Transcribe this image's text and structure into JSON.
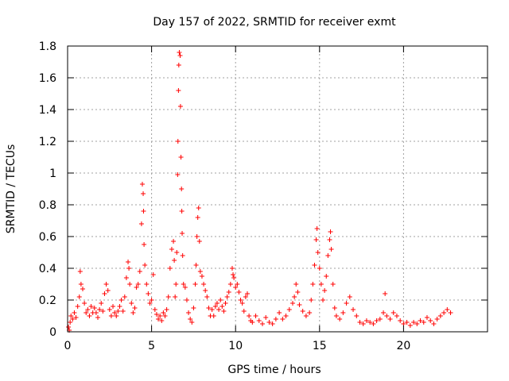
{
  "chart_data": {
    "type": "scatter",
    "title": "Day 157 of 2022, SRMTID for receiver exmt",
    "xlabel": "GPS time / hours",
    "ylabel": "SRMTID / TECUs",
    "xlim": [
      0,
      25
    ],
    "ylim": [
      0,
      1.8
    ],
    "xticks": [
      0,
      5,
      10,
      15,
      20
    ],
    "xtick_labels": [
      "0",
      "5",
      "10",
      "15",
      "20"
    ],
    "yticks": [
      0,
      0.2,
      0.4,
      0.6,
      0.8,
      1,
      1.2,
      1.4,
      1.6,
      1.8
    ],
    "ytick_labels": [
      "0",
      "0.2",
      "0.4",
      "0.6",
      "0.8",
      "1",
      "1.2",
      "1.4",
      "1.6",
      "1.8"
    ],
    "grid": true,
    "marker": "+",
    "marker_color": "#ff0000",
    "series": [
      {
        "name": "SRMTID",
        "points": [
          [
            0.05,
            0.03
          ],
          [
            0.1,
            0.01
          ],
          [
            0.15,
            0.06
          ],
          [
            0.2,
            0.1
          ],
          [
            0.3,
            0.08
          ],
          [
            0.4,
            0.12
          ],
          [
            0.5,
            0.09
          ],
          [
            0.6,
            0.16
          ],
          [
            0.7,
            0.22
          ],
          [
            0.75,
            0.38
          ],
          [
            0.8,
            0.3
          ],
          [
            0.9,
            0.27
          ],
          [
            1.0,
            0.18
          ],
          [
            1.1,
            0.12
          ],
          [
            1.2,
            0.14
          ],
          [
            1.3,
            0.1
          ],
          [
            1.4,
            0.16
          ],
          [
            1.5,
            0.12
          ],
          [
            1.6,
            0.15
          ],
          [
            1.7,
            0.12
          ],
          [
            1.8,
            0.09
          ],
          [
            1.9,
            0.14
          ],
          [
            2.0,
            0.18
          ],
          [
            2.1,
            0.13
          ],
          [
            2.2,
            0.24
          ],
          [
            2.3,
            0.3
          ],
          [
            2.4,
            0.26
          ],
          [
            2.5,
            0.14
          ],
          [
            2.6,
            0.1
          ],
          [
            2.7,
            0.16
          ],
          [
            2.8,
            0.12
          ],
          [
            2.9,
            0.1
          ],
          [
            3.0,
            0.13
          ],
          [
            3.1,
            0.16
          ],
          [
            3.2,
            0.2
          ],
          [
            3.3,
            0.13
          ],
          [
            3.4,
            0.22
          ],
          [
            3.5,
            0.34
          ],
          [
            3.6,
            0.44
          ],
          [
            3.65,
            0.4
          ],
          [
            3.7,
            0.3
          ],
          [
            3.8,
            0.18
          ],
          [
            3.9,
            0.12
          ],
          [
            4.0,
            0.15
          ],
          [
            4.1,
            0.28
          ],
          [
            4.2,
            0.3
          ],
          [
            4.3,
            0.38
          ],
          [
            4.4,
            0.68
          ],
          [
            4.45,
            0.93
          ],
          [
            4.5,
            0.87
          ],
          [
            4.52,
            0.76
          ],
          [
            4.55,
            0.55
          ],
          [
            4.6,
            0.42
          ],
          [
            4.7,
            0.3
          ],
          [
            4.8,
            0.24
          ],
          [
            4.9,
            0.18
          ],
          [
            5.0,
            0.2
          ],
          [
            5.1,
            0.36
          ],
          [
            5.2,
            0.14
          ],
          [
            5.3,
            0.11
          ],
          [
            5.4,
            0.08
          ],
          [
            5.5,
            0.1
          ],
          [
            5.6,
            0.07
          ],
          [
            5.7,
            0.12
          ],
          [
            5.8,
            0.1
          ],
          [
            5.9,
            0.14
          ],
          [
            6.0,
            0.22
          ],
          [
            6.1,
            0.4
          ],
          [
            6.2,
            0.52
          ],
          [
            6.3,
            0.57
          ],
          [
            6.35,
            0.45
          ],
          [
            6.4,
            0.22
          ],
          [
            6.45,
            0.3
          ],
          [
            6.5,
            0.5
          ],
          [
            6.55,
            0.99
          ],
          [
            6.57,
            1.2
          ],
          [
            6.6,
            1.52
          ],
          [
            6.62,
            1.68
          ],
          [
            6.65,
            1.76
          ],
          [
            6.7,
            1.74
          ],
          [
            6.72,
            1.42
          ],
          [
            6.75,
            1.1
          ],
          [
            6.78,
            0.9
          ],
          [
            6.8,
            0.76
          ],
          [
            6.82,
            0.62
          ],
          [
            6.85,
            0.48
          ],
          [
            6.9,
            0.3
          ],
          [
            7.0,
            0.28
          ],
          [
            7.1,
            0.2
          ],
          [
            7.2,
            0.12
          ],
          [
            7.3,
            0.08
          ],
          [
            7.4,
            0.06
          ],
          [
            7.5,
            0.15
          ],
          [
            7.6,
            0.3
          ],
          [
            7.65,
            0.42
          ],
          [
            7.7,
            0.6
          ],
          [
            7.75,
            0.72
          ],
          [
            7.8,
            0.78
          ],
          [
            7.85,
            0.57
          ],
          [
            7.9,
            0.38
          ],
          [
            8.0,
            0.35
          ],
          [
            8.1,
            0.3
          ],
          [
            8.2,
            0.26
          ],
          [
            8.3,
            0.22
          ],
          [
            8.4,
            0.15
          ],
          [
            8.5,
            0.1
          ],
          [
            8.6,
            0.14
          ],
          [
            8.7,
            0.1
          ],
          [
            8.8,
            0.16
          ],
          [
            8.9,
            0.18
          ],
          [
            9.0,
            0.14
          ],
          [
            9.1,
            0.2
          ],
          [
            9.2,
            0.16
          ],
          [
            9.3,
            0.13
          ],
          [
            9.4,
            0.18
          ],
          [
            9.5,
            0.22
          ],
          [
            9.6,
            0.25
          ],
          [
            9.7,
            0.3
          ],
          [
            9.8,
            0.4
          ],
          [
            9.85,
            0.36
          ],
          [
            9.9,
            0.34
          ],
          [
            10.0,
            0.28
          ],
          [
            10.1,
            0.3
          ],
          [
            10.2,
            0.25
          ],
          [
            10.3,
            0.2
          ],
          [
            10.4,
            0.18
          ],
          [
            10.5,
            0.13
          ],
          [
            10.6,
            0.22
          ],
          [
            10.7,
            0.24
          ],
          [
            10.8,
            0.1
          ],
          [
            10.9,
            0.07
          ],
          [
            11.0,
            0.06
          ],
          [
            11.2,
            0.1
          ],
          [
            11.4,
            0.07
          ],
          [
            11.6,
            0.05
          ],
          [
            11.8,
            0.09
          ],
          [
            12.0,
            0.06
          ],
          [
            12.2,
            0.05
          ],
          [
            12.4,
            0.08
          ],
          [
            12.6,
            0.12
          ],
          [
            12.8,
            0.08
          ],
          [
            13.0,
            0.1
          ],
          [
            13.2,
            0.14
          ],
          [
            13.4,
            0.18
          ],
          [
            13.5,
            0.22
          ],
          [
            13.6,
            0.3
          ],
          [
            13.7,
            0.25
          ],
          [
            13.8,
            0.17
          ],
          [
            14.0,
            0.13
          ],
          [
            14.2,
            0.1
          ],
          [
            14.4,
            0.12
          ],
          [
            14.5,
            0.2
          ],
          [
            14.6,
            0.3
          ],
          [
            14.7,
            0.42
          ],
          [
            14.8,
            0.58
          ],
          [
            14.85,
            0.65
          ],
          [
            14.9,
            0.5
          ],
          [
            15.0,
            0.4
          ],
          [
            15.1,
            0.3
          ],
          [
            15.2,
            0.2
          ],
          [
            15.3,
            0.26
          ],
          [
            15.4,
            0.35
          ],
          [
            15.5,
            0.48
          ],
          [
            15.6,
            0.58
          ],
          [
            15.65,
            0.63
          ],
          [
            15.7,
            0.52
          ],
          [
            15.8,
            0.3
          ],
          [
            15.9,
            0.15
          ],
          [
            16.0,
            0.1
          ],
          [
            16.2,
            0.08
          ],
          [
            16.4,
            0.12
          ],
          [
            16.6,
            0.18
          ],
          [
            16.8,
            0.22
          ],
          [
            17.0,
            0.14
          ],
          [
            17.2,
            0.1
          ],
          [
            17.4,
            0.06
          ],
          [
            17.6,
            0.05
          ],
          [
            17.8,
            0.07
          ],
          [
            18.0,
            0.06
          ],
          [
            18.2,
            0.05
          ],
          [
            18.4,
            0.07
          ],
          [
            18.6,
            0.08
          ],
          [
            18.8,
            0.12
          ],
          [
            18.9,
            0.24
          ],
          [
            19.0,
            0.1
          ],
          [
            19.2,
            0.08
          ],
          [
            19.4,
            0.12
          ],
          [
            19.6,
            0.1
          ],
          [
            19.8,
            0.07
          ],
          [
            20.0,
            0.05
          ],
          [
            20.2,
            0.06
          ],
          [
            20.4,
            0.04
          ],
          [
            20.6,
            0.06
          ],
          [
            20.8,
            0.05
          ],
          [
            21.0,
            0.07
          ],
          [
            21.2,
            0.06
          ],
          [
            21.4,
            0.09
          ],
          [
            21.6,
            0.07
          ],
          [
            21.8,
            0.05
          ],
          [
            22.0,
            0.08
          ],
          [
            22.2,
            0.1
          ],
          [
            22.4,
            0.12
          ],
          [
            22.6,
            0.14
          ],
          [
            22.8,
            0.12
          ]
        ]
      }
    ]
  }
}
